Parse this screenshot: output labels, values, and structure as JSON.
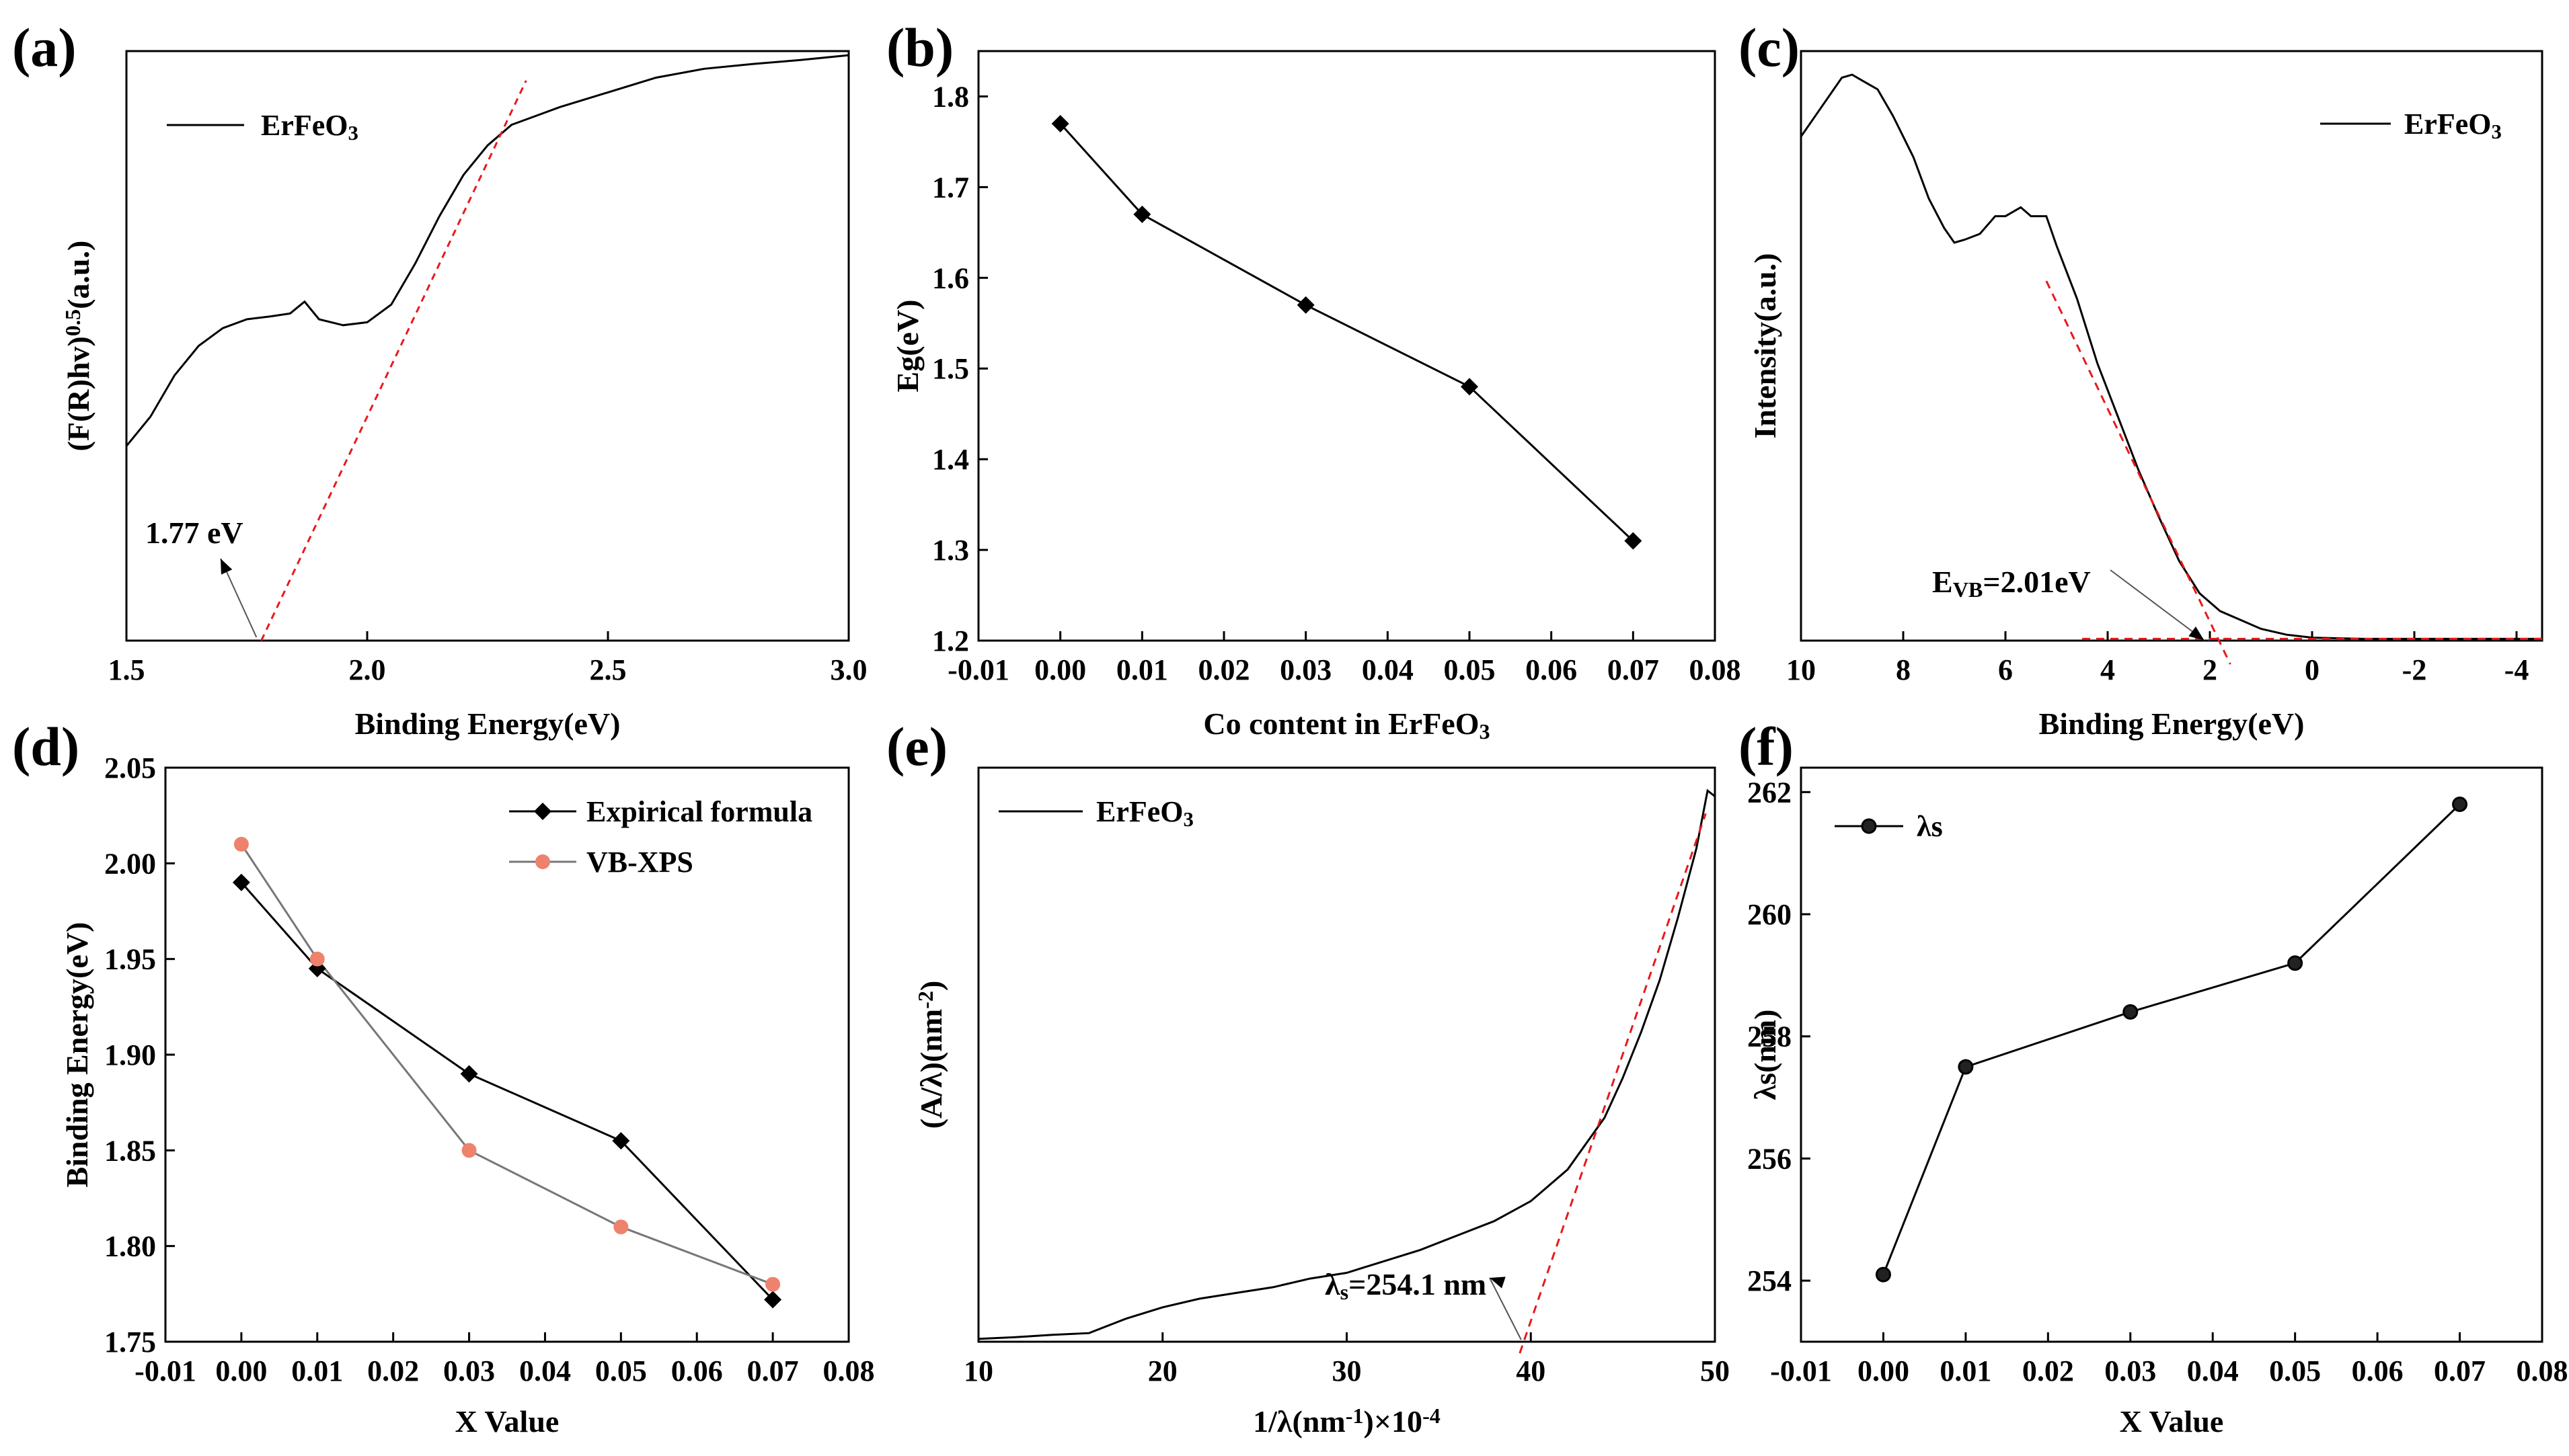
{
  "chart_data": [
    {
      "panel": "(a)",
      "type": "line",
      "xlabel": "Binding Energy(eV)",
      "ylabel": "(F(R)hv)^0.5(a.u.)",
      "ylabel_base": "(F(R)hv)",
      "ylabel_sup": "0.5",
      "ylabel_tail": "(a.u.)",
      "xlim": [
        1.5,
        3.0
      ],
      "ylim": [
        0,
        1
      ],
      "xticks": [
        1.5,
        2.0,
        2.5,
        3.0
      ],
      "xtick_labels": [
        "1.5",
        "2.0",
        "2.5",
        "3.0"
      ],
      "legend": {
        "base": "ErFeO",
        "sub": "3",
        "location": "top-left"
      },
      "series": [
        {
          "name": "ErFeO3",
          "x": [
            1.5,
            1.55,
            1.6,
            1.65,
            1.7,
            1.75,
            1.8,
            1.84,
            1.87,
            1.9,
            1.95,
            2.0,
            2.05,
            2.1,
            2.15,
            2.2,
            2.25,
            2.3,
            2.35,
            2.4,
            2.5,
            2.6,
            2.7,
            2.8,
            2.9,
            3.0
          ],
          "y": [
            0.33,
            0.38,
            0.45,
            0.5,
            0.53,
            0.545,
            0.55,
            0.555,
            0.575,
            0.545,
            0.535,
            0.54,
            0.57,
            0.64,
            0.72,
            0.79,
            0.84,
            0.875,
            0.89,
            0.905,
            0.93,
            0.955,
            0.97,
            0.978,
            0.985,
            0.993
          ]
        }
      ],
      "tangent": {
        "x": [
          1.78,
          2.33
        ],
        "y": [
          0.0,
          0.95
        ]
      },
      "annotation": {
        "text": "1.77 eV",
        "x": 1.77
      }
    },
    {
      "panel": "(b)",
      "type": "line",
      "xlabel_base": "Co content in ErFeO",
      "xlabel_sub": "3",
      "ylabel": "Eg(eV)",
      "xlim": [
        -0.01,
        0.08
      ],
      "ylim": [
        1.2,
        1.85
      ],
      "xticks": [
        -0.01,
        0.0,
        0.01,
        0.02,
        0.03,
        0.04,
        0.05,
        0.06,
        0.07,
        0.08
      ],
      "xtick_labels": [
        "-0.01",
        "0.00",
        "0.01",
        "0.02",
        "0.03",
        "0.04",
        "0.05",
        "0.06",
        "0.07",
        "0.08"
      ],
      "yticks": [
        1.2,
        1.3,
        1.4,
        1.5,
        1.6,
        1.7,
        1.8
      ],
      "ytick_labels": [
        "1.2",
        "1.3",
        "1.4",
        "1.5",
        "1.6",
        "1.7",
        "1.8"
      ],
      "series": [
        {
          "name": "Eg",
          "marker": "diamond",
          "x": [
            0.0,
            0.01,
            0.03,
            0.05,
            0.07
          ],
          "y": [
            1.77,
            1.67,
            1.57,
            1.48,
            1.31
          ]
        }
      ]
    },
    {
      "panel": "(c)",
      "type": "line",
      "xlabel": "Binding Energy(eV)",
      "ylabel": "Intensity(a.u.)",
      "xlim": [
        10,
        -4.5
      ],
      "ylim": [
        0,
        1
      ],
      "xticks": [
        10,
        8,
        6,
        4,
        2,
        0,
        -2,
        -4
      ],
      "xtick_labels": [
        "10",
        "8",
        "6",
        "4",
        "2",
        "0",
        "-2",
        "-4"
      ],
      "legend": {
        "base": "ErFeO",
        "sub": "3",
        "location": "top-right"
      },
      "series": [
        {
          "name": "ErFeO3",
          "x": [
            10,
            9.6,
            9.2,
            9.0,
            8.8,
            8.5,
            8.2,
            7.8,
            7.5,
            7.2,
            7.0,
            6.8,
            6.5,
            6.2,
            6.0,
            5.7,
            5.5,
            5.2,
            5.0,
            4.6,
            4.2,
            3.8,
            3.4,
            3.0,
            2.6,
            2.2,
            1.8,
            1.4,
            1.0,
            0.5,
            0.0,
            -1.0,
            -2.0,
            -3.0,
            -4.5
          ],
          "y": [
            0.855,
            0.905,
            0.955,
            0.96,
            0.95,
            0.935,
            0.89,
            0.82,
            0.75,
            0.7,
            0.675,
            0.68,
            0.69,
            0.72,
            0.72,
            0.735,
            0.72,
            0.72,
            0.67,
            0.58,
            0.47,
            0.38,
            0.29,
            0.21,
            0.135,
            0.08,
            0.05,
            0.035,
            0.02,
            0.01,
            0.005,
            0.003,
            0.003,
            0.003,
            0.003
          ]
        }
      ],
      "tangent_1": {
        "x": [
          5.2,
          1.6
        ],
        "y": [
          0.61,
          -0.04
        ]
      },
      "tangent_2": {
        "x": [
          4.5,
          -4.5
        ],
        "y": [
          0.003,
          0.003
        ]
      },
      "annotation": {
        "text_base": "E",
        "text_sub": "VB",
        "text_tail": "=2.01eV",
        "x": 2.01
      }
    },
    {
      "panel": "(d)",
      "type": "line",
      "xlabel": "X Value",
      "ylabel": "Binding Energy(eV)",
      "xlim": [
        -0.01,
        0.08
      ],
      "ylim": [
        1.75,
        2.05
      ],
      "xticks": [
        -0.01,
        0.0,
        0.01,
        0.02,
        0.03,
        0.04,
        0.05,
        0.06,
        0.07,
        0.08
      ],
      "xtick_labels": [
        "-0.01",
        "0.00",
        "0.01",
        "0.02",
        "0.03",
        "0.04",
        "0.05",
        "0.06",
        "0.07",
        "0.08"
      ],
      "yticks": [
        1.75,
        1.8,
        1.85,
        1.9,
        1.95,
        2.0,
        2.05
      ],
      "ytick_labels": [
        "1.75",
        "1.80",
        "1.85",
        "1.90",
        "1.95",
        "2.00",
        "2.05"
      ],
      "legend_location": "top-right",
      "series": [
        {
          "name": "Expirical formula",
          "color": "#000000",
          "marker": "diamond",
          "x": [
            0.0,
            0.01,
            0.03,
            0.05,
            0.07
          ],
          "y": [
            1.99,
            1.945,
            1.89,
            1.855,
            1.772
          ]
        },
        {
          "name": "VB-XPS",
          "color": "#ee826c",
          "line_color": "#777777",
          "marker": "circle",
          "x": [
            0.0,
            0.01,
            0.03,
            0.05,
            0.07
          ],
          "y": [
            2.01,
            1.95,
            1.85,
            1.81,
            1.78
          ]
        }
      ]
    },
    {
      "panel": "(e)",
      "type": "line",
      "xlabel_base": "1/λ(nm",
      "xlabel_sup": "-1",
      "xlabel_tail": ")×10",
      "xlabel_sup2": "-4",
      "ylabel_base": "(A/λ)(nm",
      "ylabel_sup": "-2",
      "ylabel_tail": ")",
      "xlim": [
        10,
        50
      ],
      "ylim": [
        0,
        1
      ],
      "xticks": [
        10,
        20,
        30,
        40,
        50
      ],
      "xtick_labels": [
        "10",
        "20",
        "30",
        "40",
        "50"
      ],
      "legend": {
        "base": "ErFeO",
        "sub": "3",
        "location": "top-left"
      },
      "series": [
        {
          "name": "ErFeO3",
          "x": [
            10,
            12,
            14,
            16,
            18,
            20,
            22,
            24,
            26,
            28,
            30,
            32,
            34,
            36,
            38,
            40,
            42,
            44,
            45,
            46,
            47,
            48,
            49,
            49.6,
            50
          ],
          "y": [
            0.005,
            0.008,
            0.012,
            0.015,
            0.04,
            0.06,
            0.075,
            0.085,
            0.095,
            0.11,
            0.12,
            0.14,
            0.16,
            0.185,
            0.21,
            0.245,
            0.3,
            0.39,
            0.46,
            0.54,
            0.63,
            0.74,
            0.86,
            0.96,
            0.95
          ]
        }
      ],
      "tangent": {
        "x": [
          39.4,
          49.5
        ],
        "y": [
          -0.02,
          0.92
        ]
      },
      "annotation": {
        "text_base": "λ",
        "text_sub": "s",
        "text_tail": "=254.1 nm",
        "x": 39.4
      }
    },
    {
      "panel": "(f)",
      "type": "line",
      "xlabel": "X Value",
      "ylabel": "λs(nm)",
      "xlim": [
        -0.01,
        0.08
      ],
      "ylim": [
        253,
        262.4
      ],
      "xticks": [
        -0.01,
        0.0,
        0.01,
        0.02,
        0.03,
        0.04,
        0.05,
        0.06,
        0.07,
        0.08
      ],
      "xtick_labels": [
        "-0.01",
        "0.00",
        "0.01",
        "0.02",
        "0.03",
        "0.04",
        "0.05",
        "0.06",
        "0.07",
        "0.08"
      ],
      "yticks": [
        254,
        256,
        258,
        260,
        262
      ],
      "ytick_labels": [
        "254",
        "256",
        "258",
        "260",
        "262"
      ],
      "legend_location": "top-left",
      "series": [
        {
          "name": "λs",
          "marker": "circle",
          "x": [
            0.0,
            0.01,
            0.03,
            0.05,
            0.07
          ],
          "y": [
            254.1,
            257.5,
            258.4,
            259.2,
            261.8
          ]
        }
      ]
    }
  ]
}
